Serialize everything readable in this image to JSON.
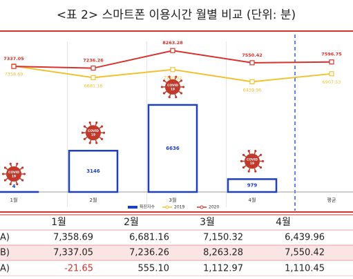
{
  "chart_data": {
    "type": "bar_line",
    "title": "<표 2> 스마트폰 이용시간 월별 비교  (단위: 분)",
    "categories": [
      "1월",
      "2월",
      "3월",
      "4월",
      "평균"
    ],
    "series": [
      {
        "name": "확진자수",
        "type": "bar",
        "color": "#1f3fbf",
        "values": [
          4,
          3146,
          6636,
          979,
          null
        ]
      },
      {
        "name": "2019",
        "type": "line",
        "axis": "y2",
        "color": "#f2c12e",
        "values": [
          7358.69,
          6681.16,
          7150.32,
          6439.96,
          6907.53
        ]
      },
      {
        "name": "2020",
        "type": "line",
        "axis": "y2",
        "color": "#d9312b",
        "values": [
          7337.05,
          7236.26,
          8263.28,
          7550.42,
          7596.75
        ]
      }
    ],
    "ylim": [
      0,
      12000
    ],
    "y2lim": [
      0,
      9200
    ],
    "icon_text": [
      "COVID",
      "19"
    ]
  },
  "table": {
    "header": [
      "1월",
      "2월",
      "3월",
      "4월"
    ],
    "rows": [
      [
        "A)",
        "7,358.69",
        "6,681.16",
        "7,150.32",
        "6,439.96"
      ],
      [
        "B)",
        "7,337.05",
        "7,236.26",
        "8,263.28",
        "7,550.42"
      ],
      [
        "A)",
        "-21.65",
        "555.10",
        "1,112.97",
        "1,110.45"
      ]
    ]
  }
}
